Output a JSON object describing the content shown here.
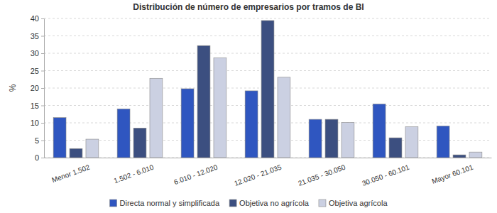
{
  "chart_data": {
    "type": "bar",
    "title": "Distribución de número de empresarios por tramos de BI",
    "y_label": "%",
    "categories": [
      "Menor 1.502",
      "1.502 - 6.010",
      "6.010 - 12.020",
      "12.020 - 21.035",
      "21.035 - 30.050",
      "30.050 - 60.101",
      "Mayor 60.101"
    ],
    "series": [
      {
        "name": "Directa normal y simplificada",
        "color": "#2f56c0",
        "values": [
          11.5,
          14.0,
          19.8,
          19.2,
          11.0,
          15.4,
          9.1
        ]
      },
      {
        "name": "Objetiva no agrícola",
        "color": "#3c4f80",
        "values": [
          2.6,
          8.5,
          32.2,
          39.4,
          11.0,
          5.7,
          0.8
        ]
      },
      {
        "name": "Objetiva agrícola",
        "color": "#cbd0e2",
        "values": [
          5.3,
          22.8,
          28.7,
          23.1,
          10.1,
          8.9,
          1.6
        ]
      }
    ],
    "ylim": [
      0,
      40
    ],
    "yticks": [
      0,
      5,
      10,
      15,
      20,
      25,
      30,
      35,
      40
    ],
    "grid": true,
    "legend": "bottom"
  }
}
